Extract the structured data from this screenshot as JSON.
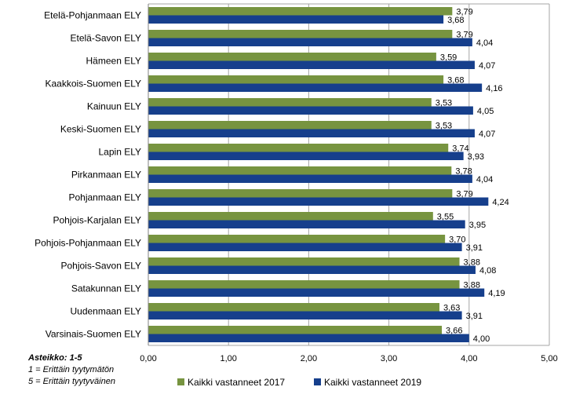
{
  "chart_data": {
    "type": "bar",
    "orientation": "horizontal",
    "categories": [
      "Etelä-Pohjanmaan ELY",
      "Etelä-Savon ELY",
      "Hämeen ELY",
      "Kaakkois-Suomen ELY",
      "Kainuun ELY",
      "Keski-Suomen ELY",
      "Lapin ELY",
      "Pirkanmaan ELY",
      "Pohjanmaan ELY",
      "Pohjois-Karjalan ELY",
      "Pohjois-Pohjanmaan ELY",
      "Pohjois-Savon ELY",
      "Satakunnan ELY",
      "Uudenmaan ELY",
      "Varsinais-Suomen ELY"
    ],
    "series": [
      {
        "name": "Kaikki vastanneet 2017",
        "color": "#779440",
        "values": [
          3.79,
          3.79,
          3.59,
          3.68,
          3.53,
          3.53,
          3.74,
          3.78,
          3.79,
          3.55,
          3.7,
          3.88,
          3.88,
          3.63,
          3.66
        ],
        "labels": [
          "3,79",
          "3,79",
          "3,59",
          "3,68",
          "3,53",
          "3,53",
          "3,74",
          "3,78",
          "3,79",
          "3,55",
          "3,70",
          "3,88",
          "3,88",
          "3,63",
          "3,66"
        ]
      },
      {
        "name": "Kaikki vastanneet 2019",
        "color": "#163F8C",
        "values": [
          3.68,
          4.04,
          4.07,
          4.16,
          4.05,
          4.07,
          3.93,
          4.04,
          4.24,
          3.95,
          3.91,
          4.08,
          4.19,
          3.91,
          4.0
        ],
        "labels": [
          "3,68",
          "4,04",
          "4,07",
          "4,16",
          "4,05",
          "4,07",
          "3,93",
          "4,04",
          "4,24",
          "3,95",
          "3,91",
          "4,08",
          "4,19",
          "3,91",
          "4,00"
        ]
      }
    ],
    "xlim": [
      0,
      5
    ],
    "xticks": [
      0,
      1,
      2,
      3,
      4,
      5
    ],
    "xtick_labels": [
      "0,00",
      "1,00",
      "2,00",
      "3,00",
      "4,00",
      "5,00"
    ],
    "grid": true,
    "legend": "bottom"
  },
  "note": {
    "title": "Asteikko: 1-5",
    "line1": "1 = Erittäin tyytymätön",
    "line2": "5 = Erittäin tyytyväinen"
  }
}
